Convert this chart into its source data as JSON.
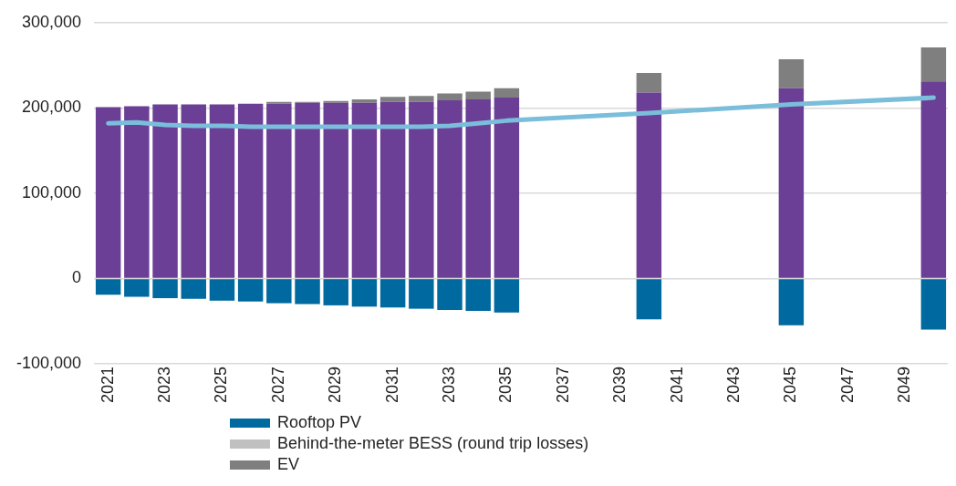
{
  "chart_data": {
    "type": "bar",
    "stacked": true,
    "categories": [
      "2021",
      null,
      "2023",
      null,
      "2025",
      null,
      "2027",
      null,
      "2029",
      null,
      "2031",
      null,
      "2033",
      null,
      "2035",
      null,
      "2037",
      null,
      "2039",
      null,
      "2041",
      null,
      "2043",
      null,
      "2045",
      null,
      "2047",
      null,
      "2049",
      null
    ],
    "series": [
      {
        "name": "Rooftop PV",
        "color": "#00699f",
        "values": [
          -19000,
          -21500,
          -23000,
          -24000,
          -26000,
          -27000,
          -29000,
          -30000,
          -31500,
          -33000,
          -34000,
          -35500,
          -37000,
          -38000,
          -40000,
          null,
          null,
          null,
          null,
          -48000,
          null,
          null,
          null,
          null,
          -55000,
          null,
          null,
          null,
          null,
          -60000
        ]
      },
      {
        "color": "#6b3f96",
        "values": [
          201000,
          202000,
          204000,
          204000,
          204000,
          205000,
          205000,
          206000,
          206000,
          206000,
          207000,
          207000,
          209000,
          210000,
          212000,
          null,
          null,
          null,
          null,
          218000,
          null,
          null,
          null,
          null,
          223000,
          null,
          null,
          null,
          null,
          231000
        ]
      },
      {
        "name": "Behind-the-meter BESS (round trip losses)",
        "color": "#c0c0c0",
        "values": [
          0,
          0,
          0,
          0,
          0,
          0,
          0,
          0,
          0,
          0,
          0,
          0,
          0,
          0,
          0,
          null,
          null,
          null,
          null,
          0,
          null,
          null,
          null,
          null,
          0,
          null,
          null,
          null,
          null,
          0
        ]
      },
      {
        "name": "EV",
        "color": "#7f7f7f",
        "values": [
          0,
          0,
          0,
          0,
          0,
          0,
          2000,
          1000,
          2000,
          4000,
          6000,
          7000,
          8000,
          9000,
          11000,
          null,
          null,
          null,
          null,
          23000,
          null,
          null,
          null,
          null,
          34000,
          null,
          null,
          null,
          null,
          40000
        ]
      },
      {
        "type": "line",
        "color": "#7abedb",
        "values": [
          182000,
          183000,
          180000,
          179000,
          179000,
          178000,
          178000,
          178000,
          178000,
          178000,
          178000,
          178000,
          179000,
          182000,
          185000,
          null,
          null,
          null,
          null,
          194000,
          null,
          null,
          null,
          null,
          204000,
          null,
          null,
          null,
          null,
          212000
        ]
      }
    ],
    "ylim": [
      -100000,
      300000
    ],
    "yticks": [
      {
        "value": -100000,
        "label": "-100,000"
      },
      {
        "value": 0,
        "label": "0"
      },
      {
        "value": 100000,
        "label": "100,000"
      },
      {
        "value": 200000,
        "label": "200,000"
      },
      {
        "value": 300000,
        "label": "300,000"
      }
    ],
    "grid": "y",
    "legend": "bottom",
    "marker": "none",
    "line_style": "solid"
  }
}
